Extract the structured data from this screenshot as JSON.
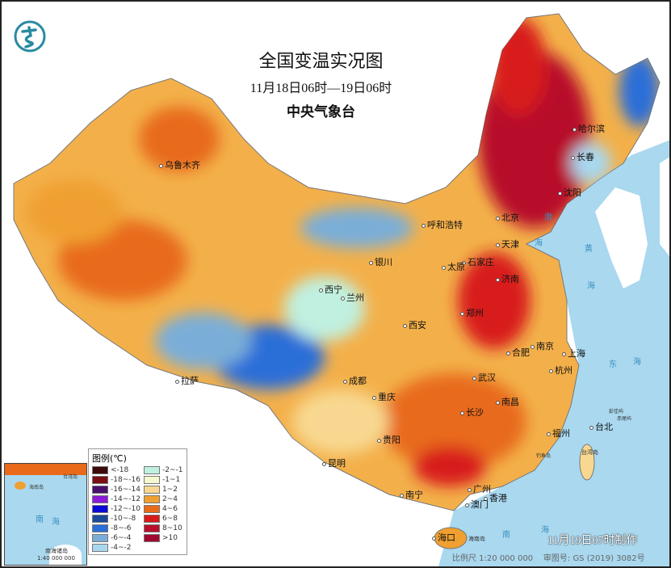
{
  "header": {
    "title": "全国变温实况图",
    "period": "11月18日06时—19日06时",
    "issuer": "中央气象台"
  },
  "logo": {
    "icon": "cma-dragon-logo-icon",
    "color": "#2a8aa0"
  },
  "cities": [
    "乌鲁木齐",
    "哈尔滨",
    "长春",
    "沈阳",
    "北京",
    "天津",
    "呼和浩特",
    "石家庄",
    "太原",
    "济南",
    "银川",
    "西宁",
    "兰州",
    "郑州",
    "西安",
    "南京",
    "上海",
    "合肥",
    "杭州",
    "拉萨",
    "成都",
    "武汉",
    "南昌",
    "重庆",
    "长沙",
    "福州",
    "台北",
    "贵阳",
    "昆明",
    "南宁",
    "广州",
    "香港",
    "澳门",
    "海口"
  ],
  "minor_labels": [
    "海南岛",
    "台湾岛",
    "钓鱼岛",
    "赤尾屿",
    "彭佳屿"
  ],
  "seas": [
    "渤",
    "海",
    "黄",
    "海",
    "东",
    "海",
    "南",
    "海"
  ],
  "legend": {
    "title": "图例(℃)",
    "items": [
      {
        "label": "<-18",
        "color": "#3d0a0a"
      },
      {
        "label": "-18~-16",
        "color": "#7a0f12"
      },
      {
        "label": "-16~-14",
        "color": "#4a0f6e"
      },
      {
        "label": "-14~-12",
        "color": "#8c1ad8"
      },
      {
        "label": "-12~-10",
        "color": "#0a0ad8"
      },
      {
        "label": "-10~-8",
        "color": "#1a4a9a"
      },
      {
        "label": "-8~-6",
        "color": "#2a6ed8"
      },
      {
        "label": "-6~-4",
        "color": "#7aaed8"
      },
      {
        "label": "-4~-2",
        "color": "#a8d8f0"
      },
      {
        "label": "-2~-1",
        "color": "#c0f0e0"
      },
      {
        "label": "-1~1",
        "color": "#f6f8d0"
      },
      {
        "label": "1~2",
        "color": "#f8d890"
      },
      {
        "label": "2~4",
        "color": "#f0a030"
      },
      {
        "label": "4~6",
        "color": "#e86a1a"
      },
      {
        "label": "6~8",
        "color": "#d81a1a"
      },
      {
        "label": "8~10",
        "color": "#b8102a"
      },
      {
        "label": ">10",
        "color": "#a00a30"
      }
    ]
  },
  "inset": {
    "sea_label": [
      "南",
      "海"
    ],
    "islands_label": "南海诸岛",
    "scale": "1:40 000 000",
    "islands_top": "台湾岛",
    "hainan": "海南岛"
  },
  "footer": {
    "made": "11月19日07时制作",
    "scale": "比例尺 1:20 000 000",
    "map_number": "审图号: GS (2019) 3082号"
  },
  "colors": {
    "sea": "#a9d8ef",
    "land_outside": "#ffffff"
  }
}
